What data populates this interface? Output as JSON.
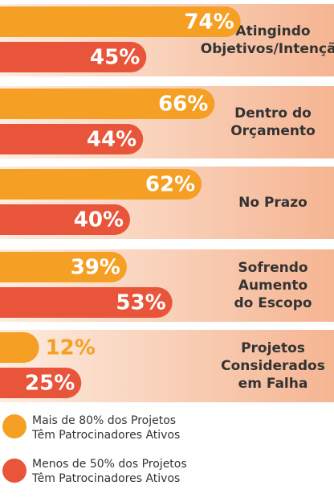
{
  "chart_data": {
    "type": "bar",
    "categories": [
      [
        "Atingindo",
        "Objetivos/Intenção"
      ],
      [
        "Dentro do",
        "Orçamento"
      ],
      [
        "No Prazo"
      ],
      [
        "Sofrendo",
        "Aumento",
        "do Escopo"
      ],
      [
        "Projetos",
        "Considerados",
        "em Falha"
      ]
    ],
    "series": [
      {
        "name": "Mais de 80% dos Projetos Têm Patrocinadores Ativos",
        "color": "#f5a024",
        "values": [
          74,
          66,
          62,
          39,
          12
        ],
        "value_labels": [
          "74%",
          "66%",
          "62%",
          "39%",
          "12%"
        ]
      },
      {
        "name": "Menos de 50% dos Projetos Têm Patrocinadores Ativos",
        "color": "#e8553a",
        "values": [
          45,
          44,
          40,
          53,
          25
        ],
        "value_labels": [
          "45%",
          "44%",
          "40%",
          "53%",
          "25%"
        ]
      }
    ]
  }
}
